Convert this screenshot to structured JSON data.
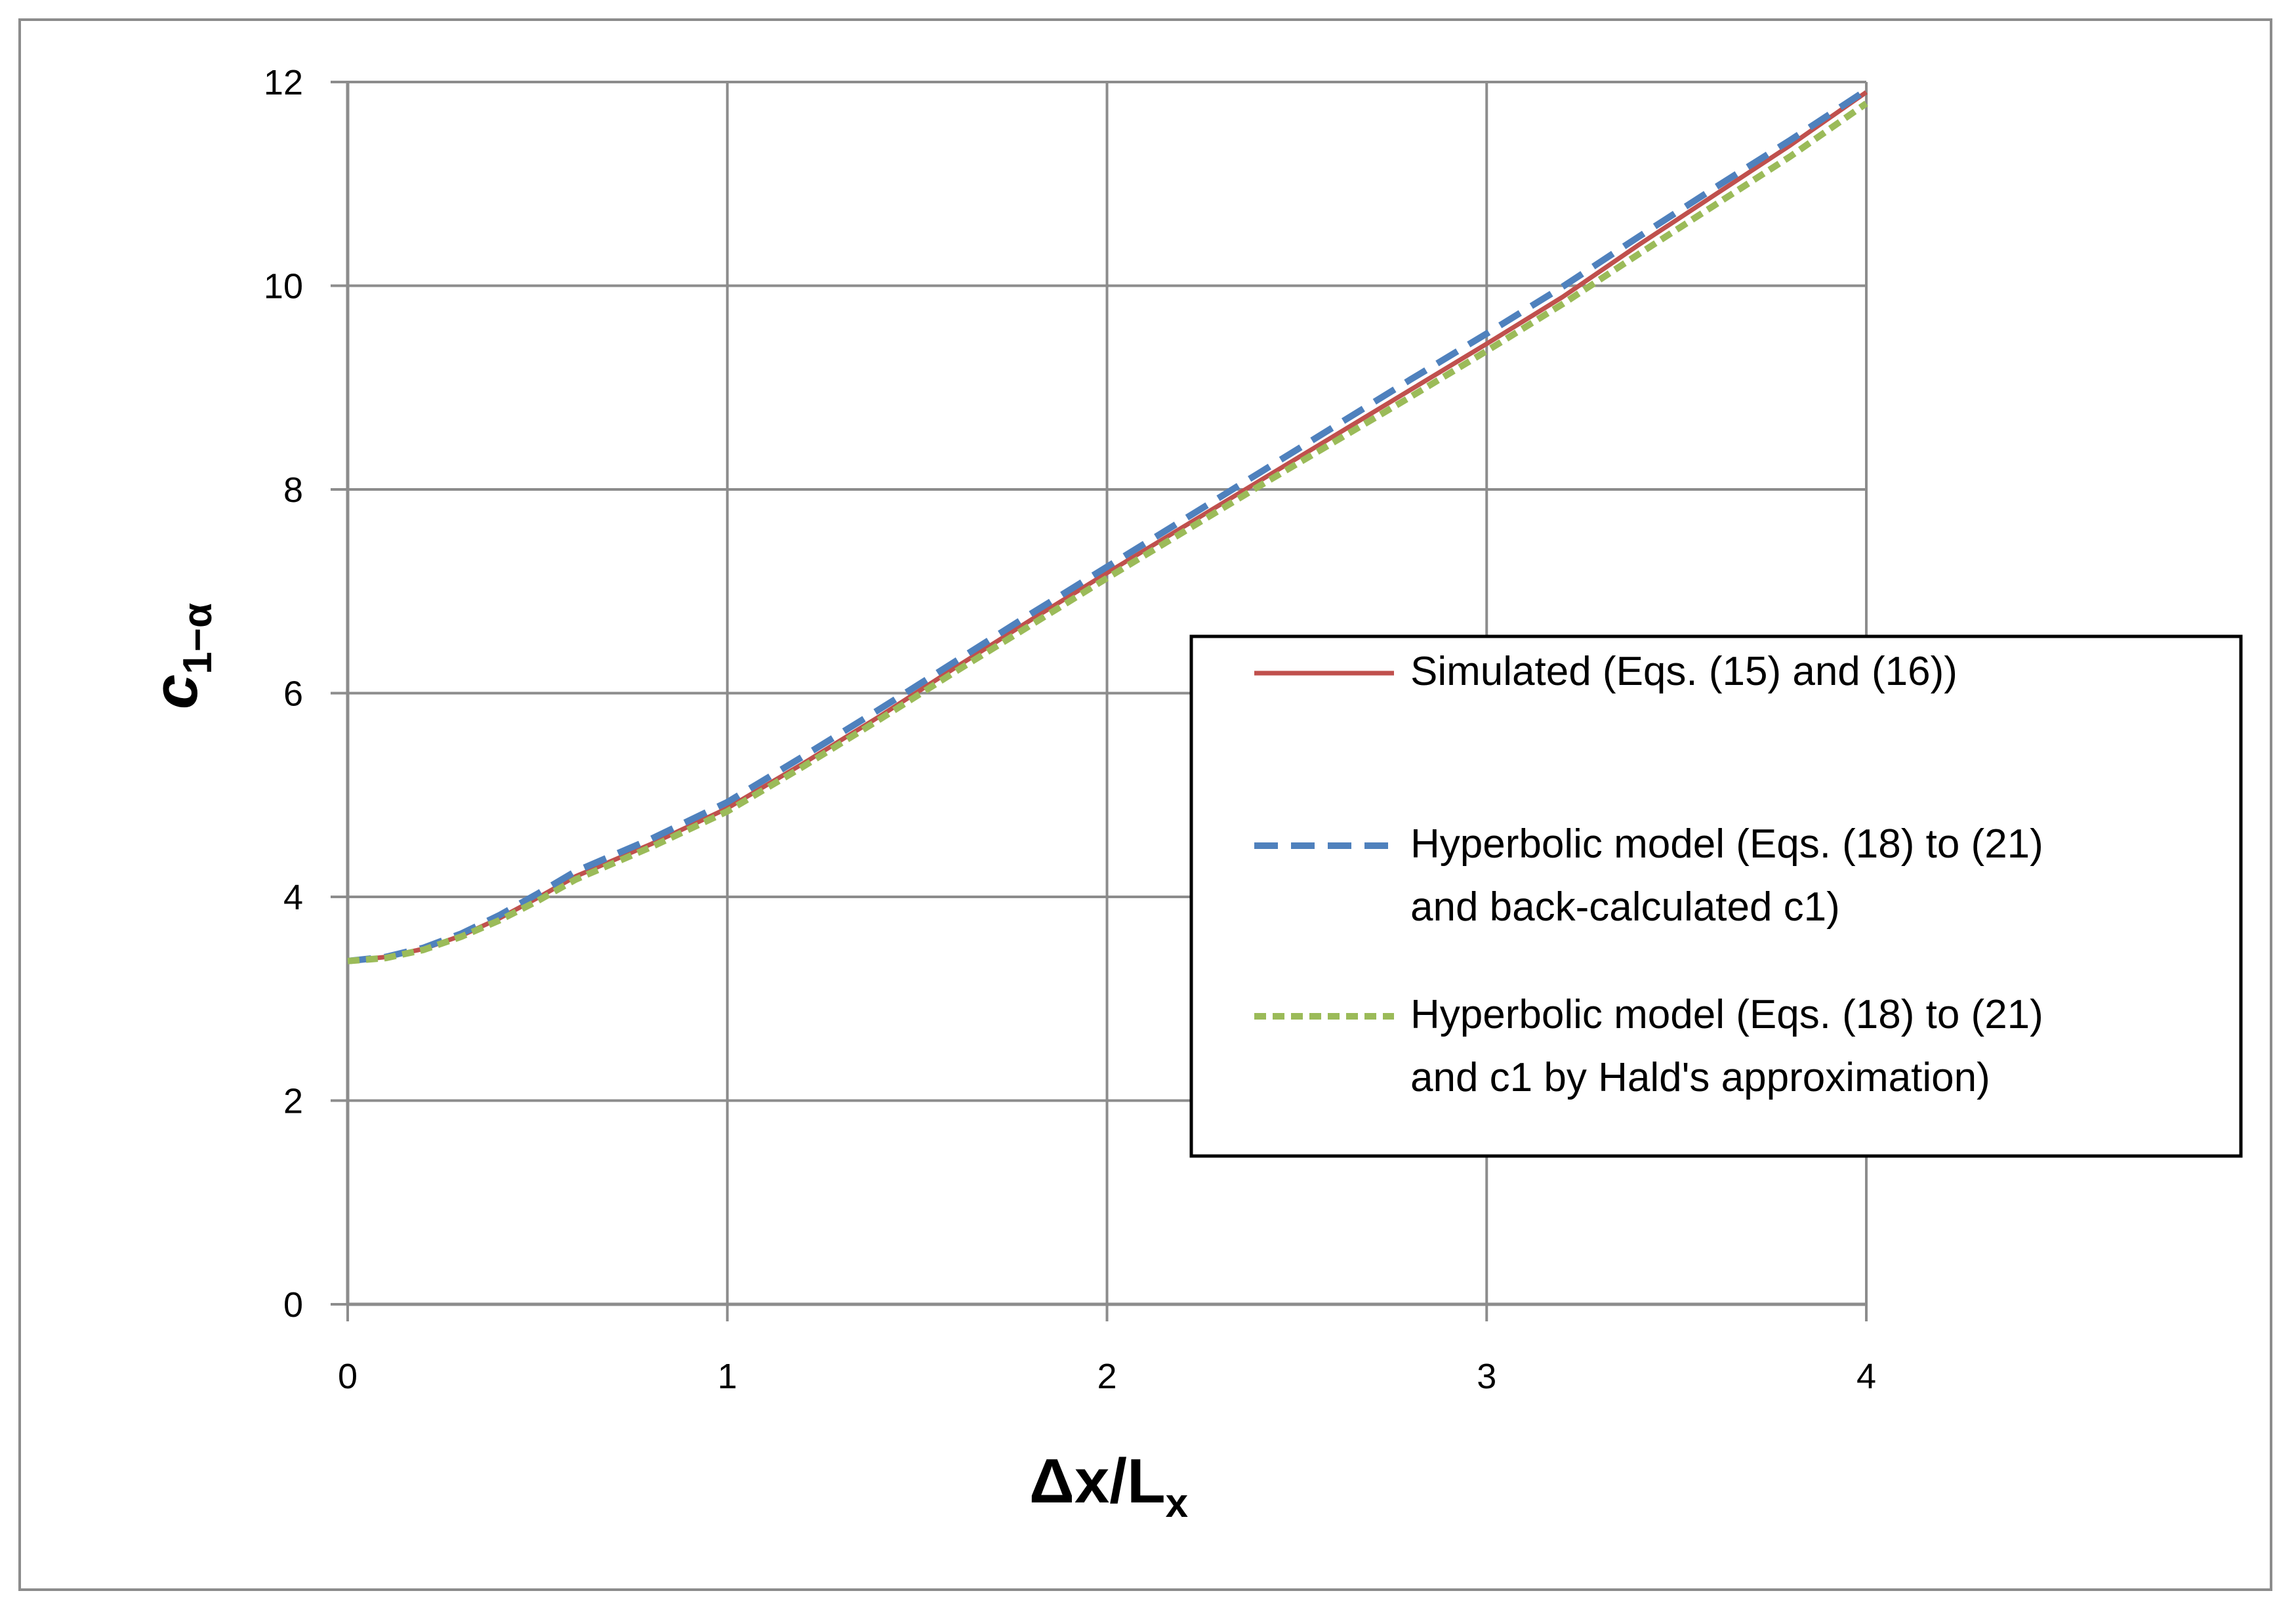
{
  "chart_data": {
    "type": "line",
    "xlabel": {
      "main": "Δx/L",
      "sub": "x"
    },
    "ylabel": {
      "main": "c",
      "sub": "1−α"
    },
    "xlim": [
      0,
      4
    ],
    "ylim": [
      0,
      12
    ],
    "x_ticks": [
      "0",
      "1",
      "2",
      "3",
      "4"
    ],
    "y_ticks": [
      "0",
      "2",
      "4",
      "6",
      "8",
      "10",
      "12"
    ],
    "grid": true,
    "legend_position": "right",
    "x": [
      0,
      0.1,
      0.2,
      0.3,
      0.4,
      0.5,
      0.6,
      0.8,
      1.0,
      1.2,
      1.4,
      1.6,
      1.8,
      2.0,
      2.2,
      2.4,
      2.6,
      2.8,
      3.0,
      3.2,
      3.4,
      3.6,
      3.8,
      4.0
    ],
    "series": [
      {
        "name": "Simulated (Eqs. (15) and (16))",
        "color": "#c0504d",
        "style": "solid",
        "values": [
          3.37,
          3.41,
          3.49,
          3.62,
          3.79,
          3.99,
          4.2,
          4.52,
          4.87,
          5.31,
          5.77,
          6.25,
          6.72,
          7.18,
          7.63,
          8.08,
          8.53,
          8.98,
          9.43,
          9.89,
          10.4,
          10.89,
          11.38,
          11.9
        ]
      },
      {
        "name": "Hyperbolic model (Eqs. (18) to (21)\nand back-calculated c1)",
        "color": "#4f81bd",
        "style": "dashed",
        "values": [
          3.37,
          3.41,
          3.5,
          3.64,
          3.82,
          4.03,
          4.25,
          4.57,
          4.93,
          5.38,
          5.84,
          6.31,
          6.78,
          7.24,
          7.7,
          8.16,
          8.62,
          9.08,
          9.53,
          9.99,
          10.48,
          10.96,
          11.43,
          11.92
        ]
      },
      {
        "name": "Hyperbolic model (Eqs. (18) to (21)\nand c1 by Hald's approximation)",
        "color": "#9bbb59",
        "style": "short-dashed",
        "values": [
          3.37,
          3.4,
          3.48,
          3.61,
          3.77,
          3.96,
          4.17,
          4.49,
          4.84,
          5.28,
          5.74,
          6.21,
          6.67,
          7.13,
          7.58,
          8.03,
          8.47,
          8.91,
          9.36,
          9.82,
          10.31,
          10.79,
          11.27,
          11.79
        ]
      }
    ]
  }
}
